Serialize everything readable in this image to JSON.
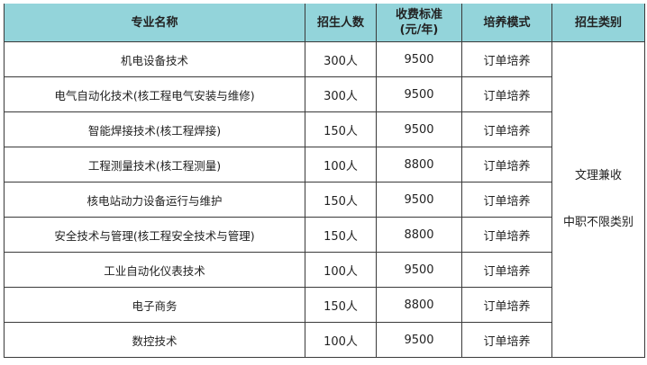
{
  "headers": [
    "专业名称",
    "招生人数",
    "收费标准",
    "(元/年)",
    "培养模式",
    "招生类别"
  ],
  "rows": [
    {
      "name": "机电设备技术",
      "count": "300人",
      "fee": "9500",
      "mode": "订单培养"
    },
    {
      "name": "电气自动化技术(核工程电气安装与维修)",
      "count": "300人",
      "fee": "9500",
      "mode": "订单培养"
    },
    {
      "name": "智能焊接技术(核工程焊接)",
      "count": "150人",
      "fee": "9500",
      "mode": "订单培养"
    },
    {
      "name": "工程测量技术(核工程测量)",
      "count": "100人",
      "fee": "8800",
      "mode": "订单培养"
    },
    {
      "name": "核电站动力设备运行与维护",
      "count": "150人",
      "fee": "9500",
      "mode": "订单培养"
    },
    {
      "name": "安全技术与管理(核工程安全技术与管理)",
      "count": "150人",
      "fee": "8800",
      "mode": "订单培养"
    },
    {
      "name": "工业自动化仪表技术",
      "count": "100人",
      "fee": "9500",
      "mode": "订单培养"
    },
    {
      "name": "电子商务",
      "count": "150人",
      "fee": "8800",
      "mode": "订单培养"
    },
    {
      "name": "数控技术",
      "count": "100人",
      "fee": "9500",
      "mode": "订单培养"
    }
  ],
  "category": {
    "line1": "文理兼收",
    "line2": "中职不限类别"
  },
  "colors": {
    "header_bg": "#93d4da",
    "border": "#3a3a3a"
  }
}
